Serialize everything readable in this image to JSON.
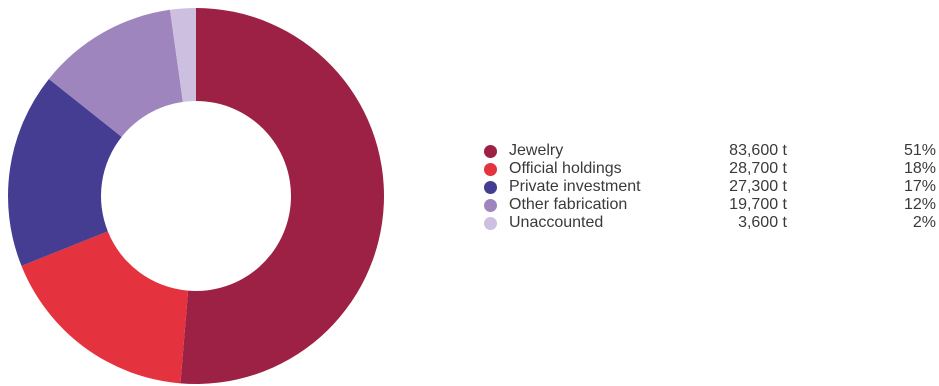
{
  "chart_data": {
    "type": "pie",
    "style": "donut",
    "slices": [
      {
        "label": "Jewelry",
        "amount": "83,600 t",
        "value": 83600,
        "percent": "51%",
        "color": "#9c2145"
      },
      {
        "label": "Official holdings",
        "amount": "28,700 t",
        "value": 28700,
        "percent": "18%",
        "color": "#e5323f"
      },
      {
        "label": "Private investment",
        "amount": "27,300 t",
        "value": 27300,
        "percent": "17%",
        "color": "#443d92"
      },
      {
        "label": "Other fabrication",
        "amount": "19,700 t",
        "value": 19700,
        "percent": "12%",
        "color": "#9e85bd"
      },
      {
        "label": "Unaccounted",
        "amount": "3,600 t",
        "value": 3600,
        "percent": "2%",
        "color": "#cdbfe0"
      }
    ],
    "legend_position": "right"
  }
}
